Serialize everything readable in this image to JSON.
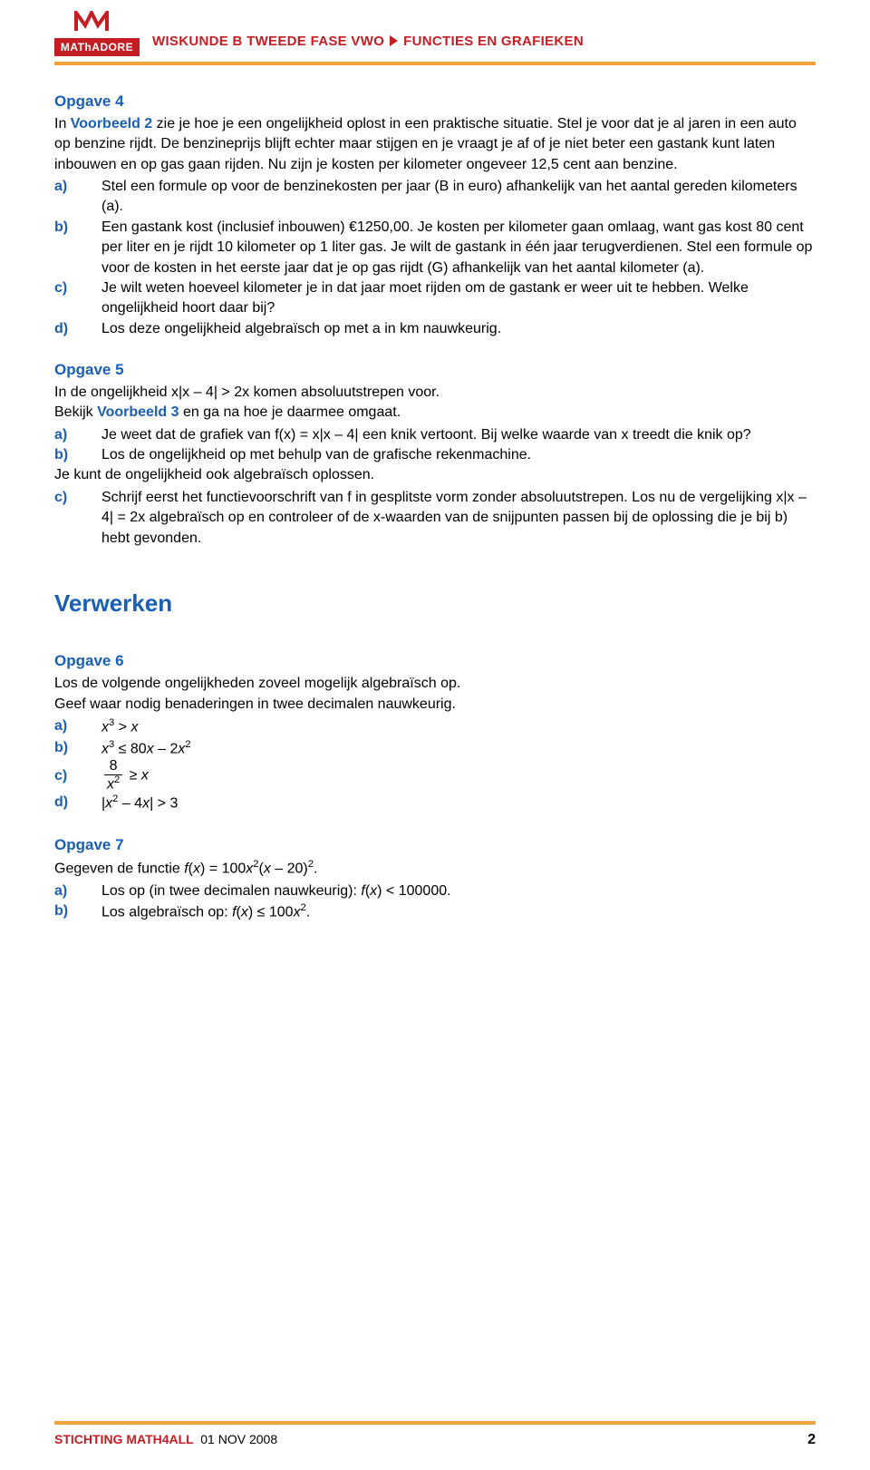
{
  "logo": {
    "text": "MAThADORE",
    "bg_color": "#c41e24",
    "m_color": "#c41e24"
  },
  "header": {
    "left": "WISKUNDE B TWEEDE FASE VWO",
    "right": "FUNCTIES EN GRAFIEKEN",
    "color": "#c41e24"
  },
  "colors": {
    "accent": "#1a5fb4",
    "rule": "#f3a13c",
    "brand": "#c41e24",
    "text": "#000000"
  },
  "opgave4": {
    "title": "Opgave 4",
    "intro1a": "In ",
    "intro1b": "Voorbeeld 2",
    "intro1c": " zie je hoe je een ongelijkheid oplost in een praktische situatie.",
    "intro2": "Stel je voor dat je al jaren in een auto op benzine rijdt. De benzineprijs blijft echter maar stijgen en je vraagt je af of je niet beter een gastank kunt laten inbouwen en op gas gaan rijden. Nu zijn je kosten per kilometer ongeveer 12,5 cent aan benzine.",
    "a": "Stel een formule op voor de benzinekosten per jaar (B in euro) afhankelijk van het aantal gereden kilometers (a).",
    "b": "Een gastank kost (inclusief inbouwen) €1250,00. Je kosten per kilometer gaan omlaag, want gas kost 80 cent per liter en je rijdt 10 kilometer op 1 liter gas. Je wilt de gastank in één jaar terugverdienen. Stel een formule op voor de kosten in het eerste jaar dat je op gas rijdt (G) afhankelijk van het aantal kilometer (a).",
    "c": "Je wilt weten hoeveel kilometer je in dat jaar moet rijden om de gastank er weer uit te hebben. Welke ongelijkheid hoort daar bij?",
    "d": "Los deze ongelijkheid algebraïsch op met a in km nauwkeurig."
  },
  "opgave5": {
    "title": "Opgave 5",
    "intro1": "In de ongelijkheid x|x – 4| > 2x komen absoluutstrepen voor.",
    "intro2a": "Bekijk ",
    "intro2b": "Voorbeeld 3",
    "intro2c": " en ga na hoe je daarmee omgaat.",
    "a": "Je weet dat de grafiek van f(x) = x|x – 4| een knik vertoont. Bij welke waarde van x treedt die knik op?",
    "b": "Los de ongelijkheid op met behulp van de grafische rekenmachine.",
    "mid": "Je kunt de ongelijkheid ook algebraïsch oplossen.",
    "c": "Schrijf eerst het functievoorschrift van f in gesplitste vorm zonder absoluutstrepen. Los nu de vergelijking x|x – 4| = 2x algebraïsch op en controleer of de x-waarden van de snijpunten passen bij de oplossing die je bij b) hebt gevonden."
  },
  "verwerken": {
    "title": "Verwerken"
  },
  "opgave6": {
    "title": "Opgave 6",
    "intro1": "Los de volgende ongelijkheden zoveel mogelijk algebraïsch op.",
    "intro2": "Geef waar nodig benaderingen in twee decimalen nauwkeurig.",
    "a_html": "<span class='ital'>x</span><sup>3</sup> &gt; <span class='ital'>x</span>",
    "b_html": "<span class='ital'>x</span><sup>3</sup> ≤ 80<span class='ital'>x</span> – 2<span class='ital'>x</span><sup>2</sup>",
    "c_html": "<span class='frac'><span class='num'>8</span><span class='den'><span class='ital'>x</span><sup>2</sup></span></span> ≥ <span class='ital'>x</span>",
    "d_html": "|<span class='ital'>x</span><sup>2</sup> – 4<span class='ital'>x</span>| &gt; 3"
  },
  "opgave7": {
    "title": "Opgave 7",
    "intro_html": "Gegeven de functie <span class='ital'>f</span>(<span class='ital'>x</span>) = 100<span class='ital'>x</span><sup>2</sup>(<span class='ital'>x</span> – 20)<sup>2</sup>.",
    "a_html": "Los op (in twee decimalen nauwkeurig): <span class='ital'>f</span>(<span class='ital'>x</span>) &lt; 100000.",
    "b_html": "Los algebraïsch op: <span class='ital'>f</span>(<span class='ital'>x</span>) ≤ 100<span class='ital'>x</span><sup>2</sup>."
  },
  "labels": {
    "a": "a)",
    "b": "b)",
    "c": "c)",
    "d": "d)"
  },
  "footer": {
    "org": "STICHTING MATH4ALL",
    "date": "01 NOV 2008",
    "page": "2"
  }
}
